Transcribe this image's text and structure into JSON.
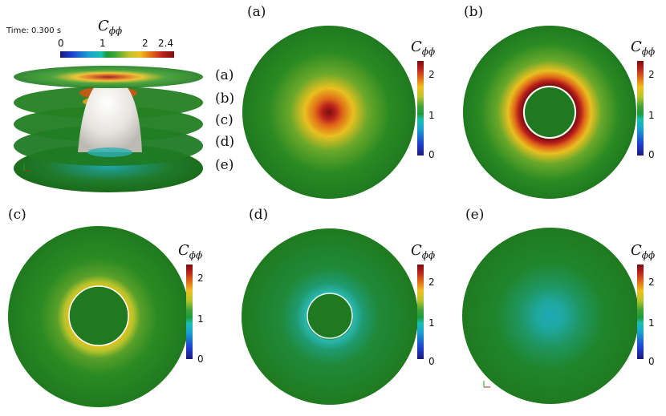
{
  "overview": {
    "time_label": "Time: 0.300 s",
    "colorbar_title": "C",
    "colorbar_sub": "ϕϕ",
    "ticks": [
      "0",
      "1",
      "2",
      "2.4"
    ],
    "slice_labels": [
      "(a)",
      "(b)",
      "(c)",
      "(d)",
      "(e)"
    ]
  },
  "panels": [
    {
      "label": "(a)",
      "cb_title": "C",
      "cb_sub": "ϕϕ",
      "ticks": [
        "2",
        "1",
        "0"
      ]
    },
    {
      "label": "(b)",
      "cb_title": "C",
      "cb_sub": "ϕϕ",
      "ticks": [
        "2",
        "1",
        "0"
      ]
    },
    {
      "label": "(c)",
      "cb_title": "C",
      "cb_sub": "ϕϕ",
      "ticks": [
        "2",
        "1",
        "0"
      ]
    },
    {
      "label": "(d)",
      "cb_title": "C",
      "cb_sub": "ϕϕ",
      "ticks": [
        "2",
        "1",
        "0"
      ]
    },
    {
      "label": "(e)",
      "cb_title": "C",
      "cb_sub": "ϕϕ",
      "ticks": [
        "2",
        "1",
        "0"
      ]
    }
  ],
  "colors": {
    "field_green": "#1f7d1f",
    "high_red": "#8b1010",
    "mid_yellow": "#e8c020",
    "low_cyan": "#2ab3b0",
    "bubble_white": "#f2f2ee"
  }
}
